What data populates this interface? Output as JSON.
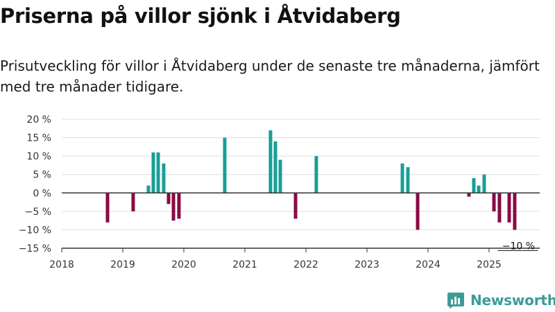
{
  "title": "Priserna på villor sjönk i Åtvidaberg",
  "subtitle": "Prisutveckling för villor i Åtvidaberg under de senaste tre månaderna, jämfört med tre månader tidigare.",
  "logo_text": "Newsworthy",
  "colors": {
    "positive": "#1a9e96",
    "negative": "#8b0a45",
    "grid": "#dddddd",
    "axis": "#333333"
  },
  "chart_data": {
    "type": "bar",
    "title": "Priserna på villor sjönk i Åtvidaberg",
    "xlabel": "",
    "ylabel": "",
    "ylim": [
      -15,
      20
    ],
    "xlim": [
      2018.0,
      2025.83
    ],
    "y_ticks": [
      20,
      15,
      10,
      5,
      0,
      -5,
      -10,
      -15
    ],
    "y_tick_labels": [
      "20 %",
      "15 %",
      "10 %",
      "5 %",
      "0 %",
      "−5 %",
      "−10 %",
      "−15 %"
    ],
    "x_ticks": [
      2018,
      2019,
      2020,
      2021,
      2022,
      2023,
      2024,
      2025
    ],
    "x_tick_labels": [
      "2018",
      "2019",
      "2020",
      "2021",
      "2022",
      "2023",
      "2024",
      "2025"
    ],
    "grid": true,
    "legend": "none",
    "annotation": {
      "text": "−10 %",
      "x": 2025.46,
      "y": -10
    },
    "series": [
      {
        "values": [
          {
            "x": 2018.75,
            "y": -8
          },
          {
            "x": 2019.17,
            "y": -5
          },
          {
            "x": 2019.42,
            "y": 2
          },
          {
            "x": 2019.5,
            "y": 11
          },
          {
            "x": 2019.58,
            "y": 11
          },
          {
            "x": 2019.67,
            "y": 8
          },
          {
            "x": 2019.75,
            "y": -3
          },
          {
            "x": 2019.83,
            "y": -7.5
          },
          {
            "x": 2019.92,
            "y": -7
          },
          {
            "x": 2020.67,
            "y": 15
          },
          {
            "x": 2021.42,
            "y": 17
          },
          {
            "x": 2021.5,
            "y": 14
          },
          {
            "x": 2021.58,
            "y": 9
          },
          {
            "x": 2021.83,
            "y": -7
          },
          {
            "x": 2022.17,
            "y": 10
          },
          {
            "x": 2023.58,
            "y": 8
          },
          {
            "x": 2023.67,
            "y": 7
          },
          {
            "x": 2023.83,
            "y": -10
          },
          {
            "x": 2024.67,
            "y": -1
          },
          {
            "x": 2024.75,
            "y": 4
          },
          {
            "x": 2024.83,
            "y": 2
          },
          {
            "x": 2024.92,
            "y": 5
          },
          {
            "x": 2025.08,
            "y": -5
          },
          {
            "x": 2025.17,
            "y": -8
          },
          {
            "x": 2025.33,
            "y": -8
          },
          {
            "x": 2025.42,
            "y": -10
          }
        ]
      }
    ]
  }
}
